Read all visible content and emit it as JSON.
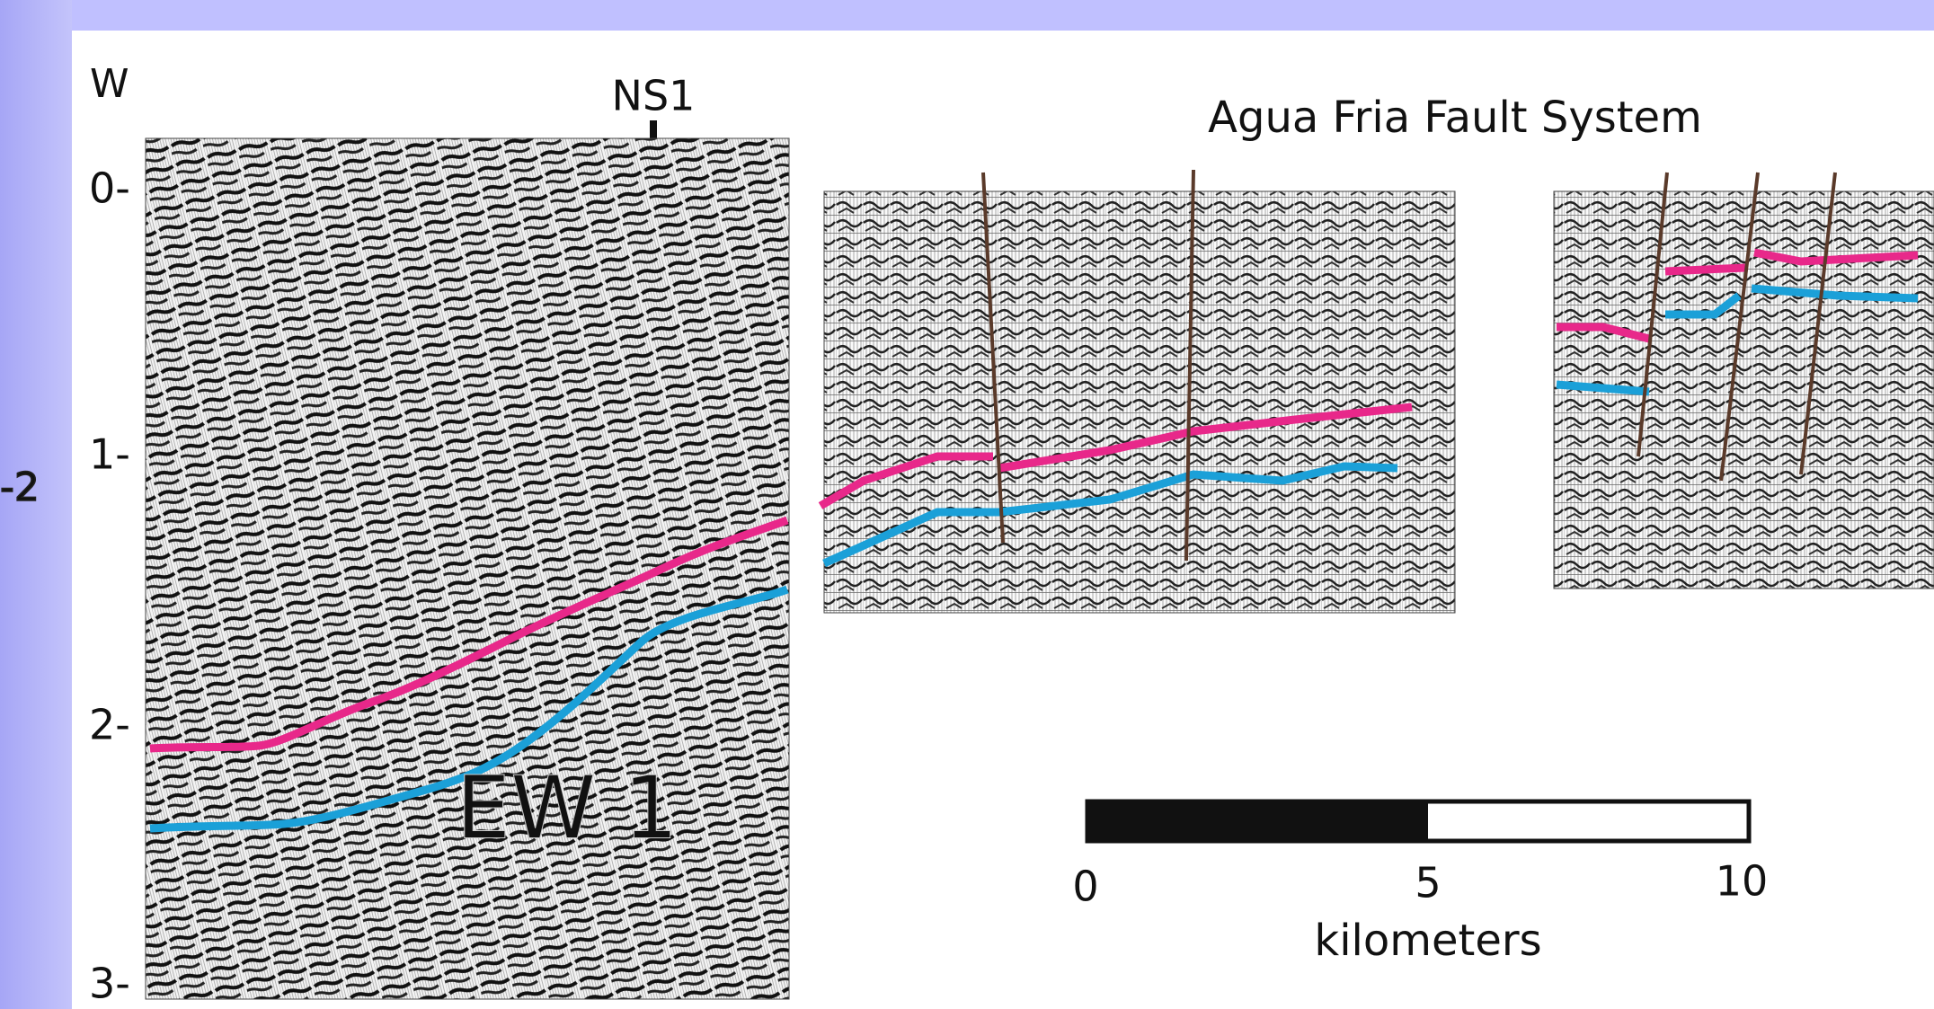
{
  "corner_label": "W",
  "ns_label": "NS1",
  "title": "Agua Fria Fault System",
  "depth_labels": [
    "0-",
    "1-",
    "2-",
    "3-"
  ],
  "side_label": "-2",
  "line_label": "EW 1",
  "scale_bar": {
    "ticks": [
      "0",
      "5",
      "10"
    ],
    "unit": "kilometers"
  }
}
